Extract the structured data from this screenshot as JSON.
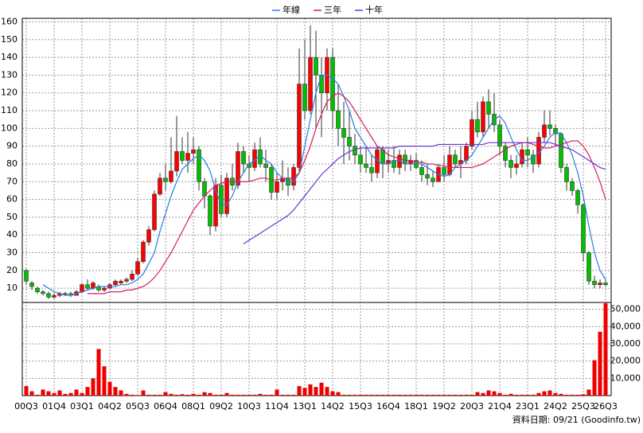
{
  "chart_data": {
    "type": "candlestick",
    "categories": [
      "00Q3",
      null,
      null,
      null,
      null,
      "01Q4",
      null,
      null,
      null,
      null,
      "03Q1",
      null,
      null,
      null,
      null,
      "04Q2",
      null,
      null,
      null,
      null,
      "05Q3",
      null,
      null,
      null,
      null,
      "06Q4",
      null,
      null,
      null,
      null,
      "08Q1",
      null,
      null,
      null,
      null,
      "09Q2",
      null,
      null,
      null,
      null,
      "10Q3",
      null,
      null,
      null,
      null,
      "11Q4",
      null,
      null,
      null,
      null,
      "13Q1",
      null,
      null,
      null,
      null,
      "14Q2",
      null,
      null,
      null,
      null,
      "15Q3",
      null,
      null,
      null,
      null,
      "16Q4",
      null,
      null,
      null,
      null,
      "18Q1",
      null,
      null,
      null,
      null,
      "19Q2",
      null,
      null,
      null,
      null,
      "20Q3",
      null,
      null,
      null,
      null,
      "21Q4",
      null,
      null,
      null,
      null,
      "23Q1",
      null,
      null,
      null,
      null,
      "24Q2",
      null,
      null,
      null,
      null,
      "25Q3",
      null,
      null,
      null,
      "26Q3"
    ],
    "open": [
      20,
      13,
      10,
      8,
      7,
      5,
      6,
      7,
      7,
      6,
      8,
      12,
      10,
      11,
      9,
      10,
      12,
      13,
      14,
      15,
      18,
      25,
      36,
      43,
      63,
      72,
      70,
      76,
      87,
      82,
      86,
      88,
      70,
      62,
      45,
      68,
      52,
      72,
      68,
      87,
      80,
      78,
      88,
      80,
      78,
      64,
      70,
      72,
      68,
      78,
      125,
      110,
      140,
      130,
      120,
      140,
      110,
      100,
      95,
      90,
      85,
      80,
      78,
      75,
      88,
      80,
      82,
      78,
      85,
      80,
      82,
      78,
      74,
      72,
      70,
      78,
      74,
      85,
      80,
      82,
      90,
      105,
      98,
      115,
      108,
      102,
      90,
      82,
      78,
      80,
      88,
      85,
      80,
      95,
      102,
      100,
      97,
      78,
      70,
      65,
      57,
      30,
      14,
      12,
      13
    ],
    "high": [
      21,
      14,
      11,
      9,
      8,
      7,
      8,
      8,
      8,
      9,
      13,
      15,
      14,
      12,
      11,
      13,
      15,
      15,
      16,
      20,
      27,
      37,
      45,
      65,
      75,
      80,
      95,
      107,
      95,
      98,
      95,
      90,
      72,
      63,
      72,
      74,
      75,
      80,
      92,
      90,
      85,
      92,
      95,
      88,
      80,
      75,
      82,
      78,
      80,
      145,
      150,
      158,
      155,
      140,
      145,
      145,
      125,
      115,
      110,
      97,
      90,
      90,
      85,
      90,
      90,
      88,
      90,
      88,
      88,
      85,
      86,
      82,
      80,
      76,
      80,
      85,
      90,
      88,
      90,
      92,
      110,
      115,
      118,
      122,
      120,
      105,
      92,
      85,
      85,
      92,
      95,
      88,
      98,
      110,
      110,
      102,
      98,
      80,
      72,
      66,
      58,
      31,
      17,
      15,
      15
    ],
    "low": [
      12,
      9,
      7,
      6,
      4,
      4,
      5,
      6,
      5,
      6,
      7,
      9,
      9,
      8,
      8,
      10,
      11,
      12,
      13,
      14,
      17,
      24,
      34,
      42,
      62,
      65,
      69,
      73,
      80,
      75,
      80,
      65,
      55,
      40,
      42,
      50,
      50,
      65,
      66,
      75,
      70,
      76,
      78,
      70,
      60,
      60,
      65,
      62,
      65,
      75,
      105,
      108,
      100,
      95,
      110,
      100,
      90,
      80,
      82,
      80,
      75,
      75,
      70,
      72,
      72,
      75,
      75,
      74,
      76,
      76,
      77,
      70,
      68,
      67,
      70,
      70,
      73,
      78,
      72,
      80,
      88,
      95,
      95,
      100,
      98,
      85,
      78,
      72,
      74,
      78,
      78,
      75,
      78,
      92,
      96,
      90,
      75,
      65,
      62,
      52,
      25,
      12,
      10,
      10,
      11
    ],
    "close": [
      14,
      11,
      8,
      7,
      5,
      6,
      7,
      7,
      6,
      8,
      12,
      10,
      13,
      9,
      10,
      12,
      14,
      14,
      15,
      18,
      25,
      36,
      43,
      63,
      72,
      70,
      76,
      87,
      82,
      86,
      88,
      70,
      62,
      45,
      68,
      52,
      72,
      68,
      87,
      80,
      78,
      88,
      80,
      78,
      64,
      70,
      72,
      68,
      78,
      125,
      110,
      140,
      130,
      120,
      140,
      110,
      100,
      95,
      90,
      85,
      80,
      78,
      75,
      88,
      80,
      82,
      78,
      85,
      80,
      82,
      78,
      74,
      72,
      70,
      78,
      74,
      85,
      80,
      82,
      90,
      105,
      98,
      115,
      108,
      102,
      90,
      82,
      78,
      80,
      88,
      85,
      80,
      95,
      102,
      100,
      97,
      78,
      70,
      65,
      57,
      30,
      14,
      12,
      13,
      12
    ],
    "volume": [
      5500,
      2500,
      500,
      3500,
      2500,
      1500,
      3000,
      1000,
      1500,
      3500,
      1500,
      5000,
      10000,
      27000,
      17000,
      8000,
      5000,
      3000,
      1000,
      500,
      300,
      3000,
      500,
      500,
      500,
      2000,
      1000,
      500,
      800,
      500,
      1000,
      500,
      2000,
      1500,
      500,
      500,
      1500,
      500,
      500,
      500,
      500,
      500,
      1000,
      500,
      500,
      3500,
      500,
      500,
      500,
      5500,
      4500,
      6500,
      5000,
      7500,
      5000,
      2500,
      2000,
      500,
      500,
      500,
      500,
      500,
      500,
      500,
      500,
      500,
      500,
      500,
      500,
      500,
      500,
      500,
      500,
      500,
      500,
      500,
      500,
      500,
      500,
      500,
      500,
      2000,
      1500,
      3000,
      2500,
      1500,
      500,
      1000,
      500,
      500,
      500,
      500,
      1500,
      2500,
      3000,
      1500,
      1000,
      500,
      500,
      500,
      800,
      3500,
      20500,
      37000,
      53500
    ],
    "series": [
      {
        "name": "年線",
        "color": "#2a7be4",
        "values": [
          null,
          null,
          null,
          12,
          10,
          8,
          7,
          6,
          6,
          7,
          8,
          9,
          10,
          11,
          11,
          11,
          11,
          12,
          12,
          13,
          15,
          18,
          24,
          30,
          42,
          52,
          62,
          70,
          77,
          80,
          83,
          85,
          82,
          76,
          65,
          57,
          57,
          62,
          70,
          75,
          80,
          82,
          85,
          82,
          80,
          75,
          72,
          70,
          70,
          75,
          90,
          105,
          120,
          130,
          130,
          128,
          125,
          118,
          110,
          100,
          95,
          90,
          85,
          82,
          80,
          80,
          82,
          82,
          80,
          80,
          80,
          80,
          78,
          76,
          74,
          73,
          74,
          78,
          80,
          82,
          85,
          90,
          95,
          100,
          105,
          107,
          103,
          95,
          88,
          82,
          82,
          84,
          86,
          90,
          95,
          98,
          97,
          92,
          85,
          75,
          62,
          45,
          30,
          20,
          15
        ]
      },
      {
        "name": "三年",
        "color": "#d81b60",
        "values": [
          null,
          null,
          null,
          null,
          null,
          null,
          null,
          null,
          null,
          null,
          null,
          7,
          7,
          7,
          7,
          8,
          8,
          8,
          9,
          9,
          10,
          11,
          13,
          16,
          20,
          25,
          30,
          36,
          42,
          48,
          54,
          58,
          62,
          65,
          68,
          69,
          70,
          70,
          70,
          70,
          70,
          71,
          72,
          72,
          71,
          71,
          72,
          72,
          72,
          75,
          82,
          90,
          100,
          108,
          115,
          118,
          120,
          118,
          115,
          110,
          105,
          100,
          95,
          90,
          88,
          85,
          84,
          83,
          82,
          82,
          81,
          81,
          80,
          80,
          79,
          79,
          78,
          78,
          78,
          78,
          78,
          79,
          80,
          82,
          84,
          86,
          88,
          90,
          91,
          92,
          92,
          91,
          90,
          89,
          89,
          90,
          91,
          92,
          93,
          93,
          90,
          85,
          78,
          70,
          60
        ]
      },
      {
        "name": "十年",
        "color": "#6a35d8",
        "values": [
          null,
          null,
          null,
          null,
          null,
          null,
          null,
          null,
          null,
          null,
          null,
          null,
          null,
          null,
          null,
          null,
          null,
          null,
          null,
          null,
          null,
          null,
          null,
          null,
          null,
          null,
          null,
          null,
          null,
          null,
          null,
          null,
          null,
          null,
          null,
          null,
          null,
          null,
          null,
          35,
          37,
          39,
          41,
          43,
          45,
          47,
          49,
          51,
          54,
          58,
          62,
          66,
          70,
          74,
          77,
          80,
          83,
          85,
          87,
          88,
          89,
          89,
          89,
          89,
          89,
          89,
          89,
          90,
          90,
          90,
          90,
          90,
          90,
          90,
          91,
          91,
          91,
          91,
          91,
          91,
          91,
          91,
          91,
          92,
          92,
          92,
          92,
          92,
          92,
          92,
          92,
          92,
          92,
          92,
          92,
          91,
          90,
          89,
          88,
          86,
          84,
          82,
          80,
          78,
          77
        ]
      }
    ],
    "up_color": "#ff0000",
    "down_color": "#00c000",
    "volume_color": "#ee0000",
    "ylim": [
      2,
      162
    ],
    "yticks": [
      10,
      20,
      30,
      40,
      50,
      60,
      70,
      80,
      90,
      100,
      110,
      120,
      130,
      140,
      150,
      160
    ],
    "y2lim": [
      0,
      54000
    ],
    "y2ticks": [
      {
        "value": 10000,
        "label": "10,000"
      },
      {
        "value": 20000,
        "label": "20,000"
      },
      {
        "value": 30000,
        "label": "30,000"
      },
      {
        "value": 40000,
        "label": "40,000"
      },
      {
        "value": 50000,
        "label": "50,000"
      }
    ],
    "grid": true,
    "footnote": "資料日期: 09/21  (Goodinfo.tw)"
  }
}
